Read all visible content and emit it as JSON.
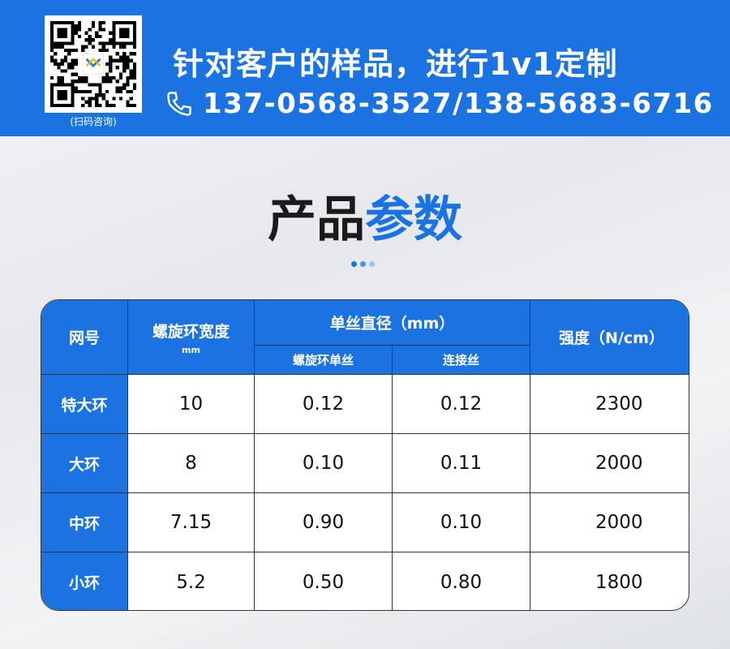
{
  "banner": {
    "qr_caption": "(扫码咨询)",
    "slogan": "针对客户的样品，进行1v1定制",
    "phones": "137-0568-3527/138-5683-6716",
    "color": "#1b73e2"
  },
  "section": {
    "title_part1": "产品",
    "title_part2": "参数"
  },
  "table": {
    "headers": {
      "mesh": "网号",
      "width": "螺旋环宽度",
      "width_unit": "mm",
      "diameter": "单丝直径（mm）",
      "spiral_wire": "螺旋环单丝",
      "connect_wire": "连接丝",
      "strength": "强度（N/cm）"
    },
    "rows": [
      {
        "name": "特大环",
        "width": "10",
        "spiral": "0.12",
        "connect": "0.12",
        "strength": "2300"
      },
      {
        "name": "大环",
        "width": "8",
        "spiral": "0.10",
        "connect": "0.11",
        "strength": "2000"
      },
      {
        "name": "中环",
        "width": "7.15",
        "spiral": "0.90",
        "connect": "0.10",
        "strength": "2000"
      },
      {
        "name": "小环",
        "width": "5.2",
        "spiral": "0.50",
        "connect": "0.80",
        "strength": "1800"
      }
    ]
  }
}
